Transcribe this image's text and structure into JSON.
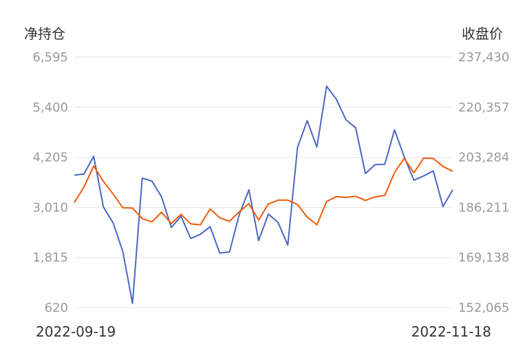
{
  "chart_data": {
    "type": "line",
    "left_axis_title": "净持仓",
    "right_axis_title": "收盘价",
    "left_ticks": [
      "6,595",
      "5,400",
      "4,205",
      "3,010",
      "1,815",
      "620"
    ],
    "right_ticks": [
      "237,430",
      "220,357",
      "203,284",
      "186,211",
      "169,138",
      "152,065"
    ],
    "ylim_left": [
      620,
      6595
    ],
    "ylim_right": [
      152065,
      237430
    ],
    "x_start_label": "2022-09-19",
    "x_end_label": "2022-11-18",
    "grid": true,
    "series": [
      {
        "axis": "left",
        "color": "#4a66c4",
        "values": [
          3780,
          3810,
          4230,
          3020,
          2640,
          1960,
          720,
          3710,
          3640,
          3260,
          2530,
          2800,
          2270,
          2370,
          2550,
          1920,
          1950,
          2840,
          3430,
          2220,
          2850,
          2650,
          2110,
          4440,
          5080,
          4450,
          5900,
          5590,
          5100,
          4910,
          3820,
          4030,
          4040,
          4860,
          4220,
          3660,
          3760,
          3880,
          3030,
          3430
        ]
      },
      {
        "axis": "right",
        "color": "#f05a0a",
        "values": [
          187900,
          193200,
          200300,
          195100,
          190800,
          186100,
          186000,
          182400,
          181300,
          184600,
          180700,
          183900,
          180600,
          180300,
          185700,
          182700,
          181500,
          184700,
          187500,
          181900,
          187400,
          188700,
          188700,
          187200,
          182900,
          180300,
          188200,
          189900,
          189600,
          190000,
          188600,
          189800,
          190300,
          198100,
          202900,
          198000,
          203000,
          202900,
          200200,
          198500
        ]
      }
    ]
  }
}
